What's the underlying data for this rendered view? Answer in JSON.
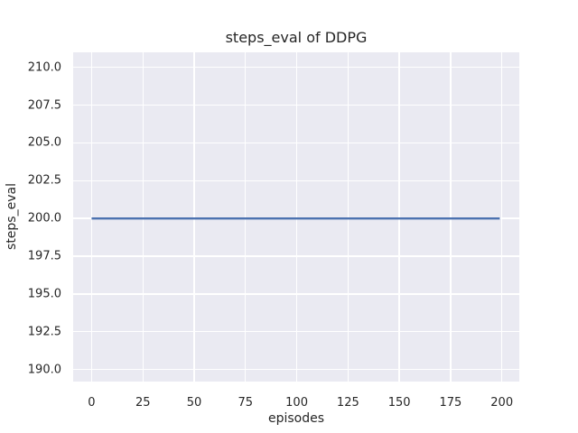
{
  "figure": {
    "background": "#ffffff"
  },
  "chart_data": {
    "type": "line",
    "title": "steps_eval of DDPG",
    "xlabel": "episodes",
    "ylabel": "steps_eval",
    "style": "seaborn-darkgrid",
    "grid": true,
    "legend": false,
    "plot_background": "#eaeaf2",
    "grid_color": "#ffffff",
    "text_color": "#262626",
    "x_axis": {
      "label": "episodes",
      "lim": [
        -9,
        208.5
      ],
      "ticks": [
        {
          "v": 0,
          "t": "0"
        },
        {
          "v": 25,
          "t": "25"
        },
        {
          "v": 50,
          "t": "50"
        },
        {
          "v": 75,
          "t": "75"
        },
        {
          "v": 100,
          "t": "100"
        },
        {
          "v": 125,
          "t": "125"
        },
        {
          "v": 150,
          "t": "150"
        },
        {
          "v": 175,
          "t": "175"
        },
        {
          "v": 200,
          "t": "200"
        }
      ]
    },
    "y_axis": {
      "label": "steps_eval",
      "lim": [
        189.2,
        211.0
      ],
      "ticks": [
        {
          "v": 210.0,
          "t": "210.0"
        },
        {
          "v": 207.5,
          "t": "207.5"
        },
        {
          "v": 205.0,
          "t": "205.0"
        },
        {
          "v": 202.5,
          "t": "202.5"
        },
        {
          "v": 200.0,
          "t": "200.0"
        },
        {
          "v": 197.5,
          "t": "197.5"
        },
        {
          "v": 195.0,
          "t": "195.0"
        },
        {
          "v": 192.5,
          "t": "192.5"
        },
        {
          "v": 190.0,
          "t": "190.0"
        }
      ]
    },
    "series": [
      {
        "name": "steps_eval",
        "color": "#4c72b0",
        "line_width": 2.4,
        "x": [
          0,
          199
        ],
        "y": [
          200,
          200
        ]
      }
    ]
  }
}
